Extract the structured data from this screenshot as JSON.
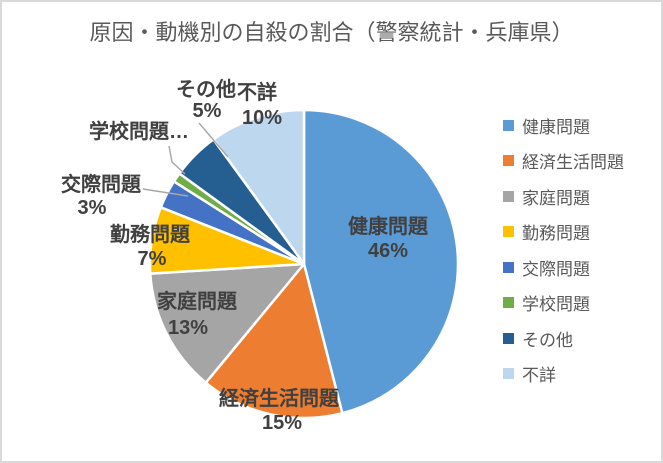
{
  "chart_data": {
    "type": "pie",
    "title": "原因・動機別の自殺の割合（警察統計・兵庫県）",
    "legend_position": "right",
    "start_angle_deg": 0,
    "direction": "clockwise",
    "unit": "%",
    "categories": [
      "健康問題",
      "経済生活問題",
      "家庭問題",
      "勤務問題",
      "交際問題",
      "学校問題",
      "その他",
      "不詳"
    ],
    "values": [
      46,
      15,
      13,
      7,
      3,
      1,
      5,
      10
    ],
    "colors": [
      "#5B9BD5",
      "#ED7D31",
      "#A5A5A5",
      "#FFC000",
      "#4472C4",
      "#70AD47",
      "#255E91",
      "#BDD7EE"
    ],
    "slices": [
      {
        "label": "健康問題",
        "value": 46,
        "pct_label": "46%",
        "color": "#5B9BD5"
      },
      {
        "label": "経済生活問題",
        "value": 15,
        "pct_label": "15%",
        "color": "#ED7D31"
      },
      {
        "label": "家庭問題",
        "value": 13,
        "pct_label": "13%",
        "color": "#A5A5A5"
      },
      {
        "label": "勤務問題",
        "value": 7,
        "pct_label": "7%",
        "color": "#FFC000"
      },
      {
        "label": "交際問題",
        "value": 3,
        "pct_label": "3%",
        "color": "#4472C4"
      },
      {
        "label": "学校問題",
        "value": 1,
        "pct_label": "",
        "label_display": "学校問題…",
        "color": "#70AD47"
      },
      {
        "label": "その他",
        "value": 5,
        "pct_label": "5%",
        "color": "#255E91"
      },
      {
        "label": "不詳",
        "value": 10,
        "pct_label": "10%",
        "color": "#BDD7EE"
      }
    ],
    "style": {
      "slice_border_color": "#FFFFFF",
      "leader_line_color": "#A6A6A6",
      "title_color": "#595959",
      "label_color": "#404040",
      "legend_text_color": "#595959"
    }
  }
}
